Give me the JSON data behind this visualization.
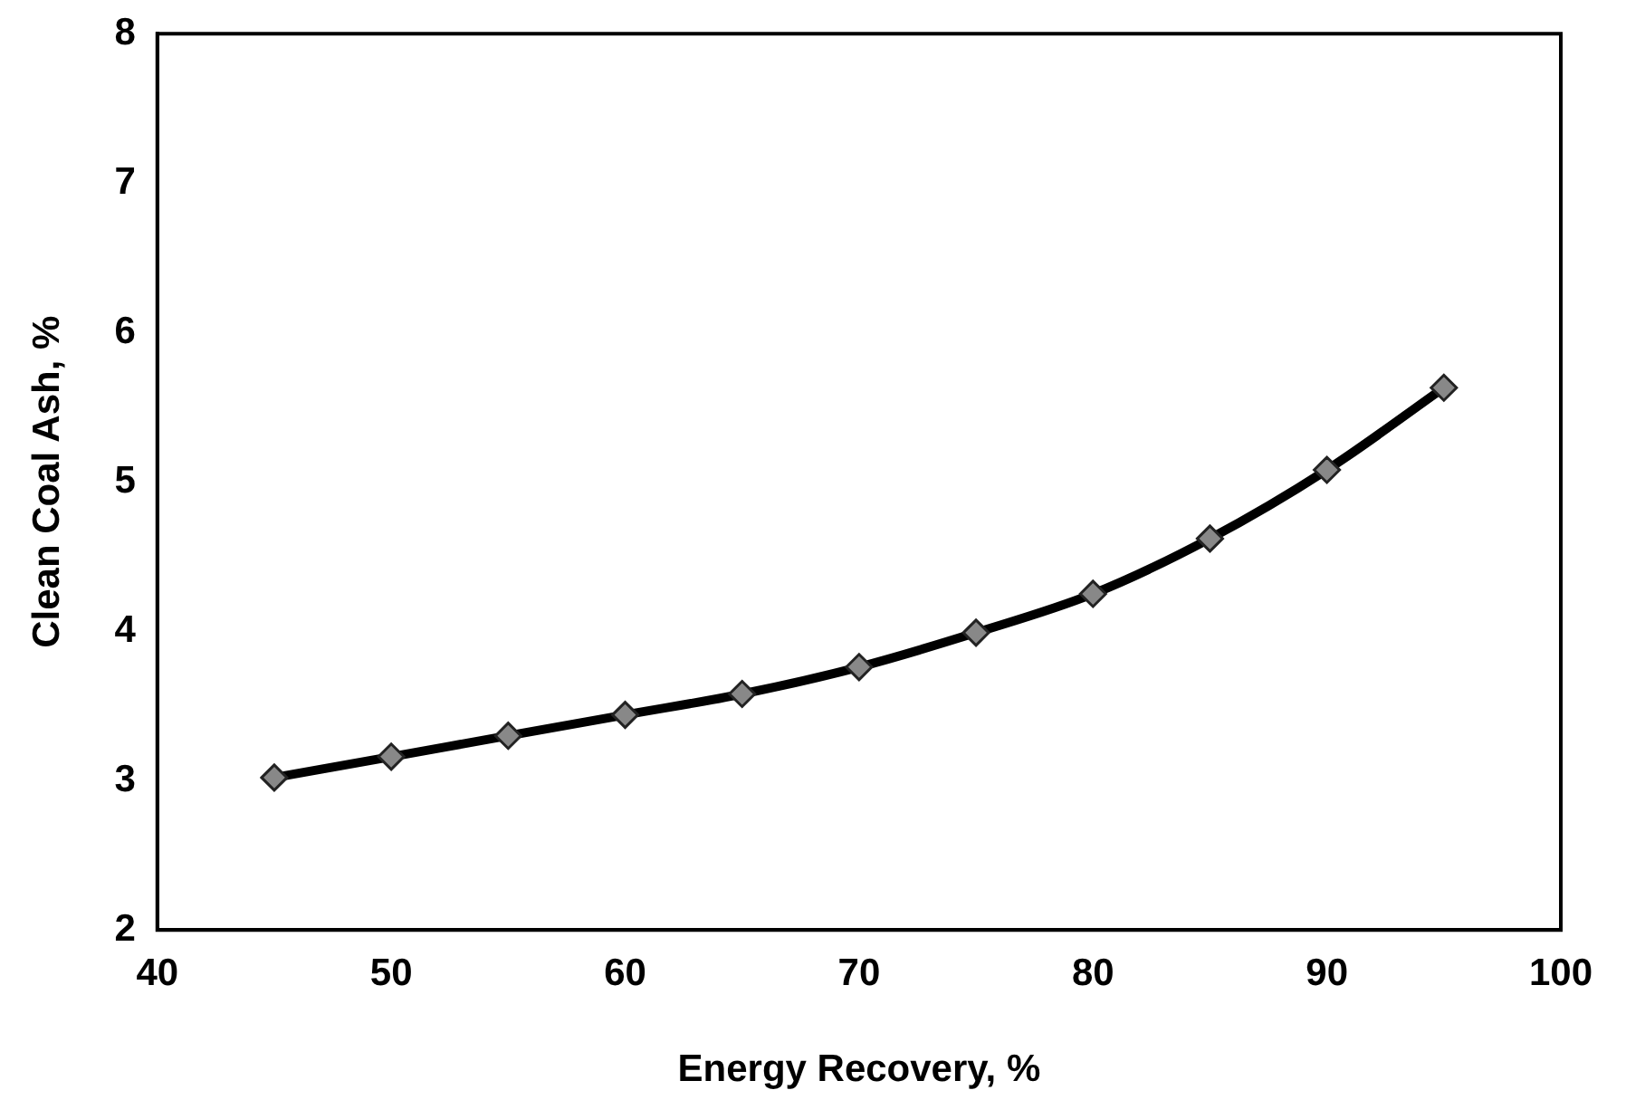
{
  "chart_data": {
    "type": "line",
    "xlabel": "Energy Recovery, %",
    "ylabel": "Clean Coal Ash, %",
    "x": [
      45,
      50,
      55,
      60,
      65,
      70,
      75,
      80,
      85,
      90,
      95
    ],
    "series": [
      {
        "color": "#000000",
        "values": [
          3.02,
          3.16,
          3.3,
          3.44,
          3.58,
          3.76,
          3.99,
          4.25,
          4.62,
          5.08,
          5.63
        ]
      }
    ],
    "xlim": [
      40,
      100
    ],
    "xticks": [
      40,
      50,
      60,
      70,
      80,
      90,
      100
    ],
    "ylim": [
      2,
      8
    ],
    "yticks": [
      2,
      3,
      4,
      5,
      6,
      7,
      8
    ],
    "grid": false,
    "legend": false,
    "marker": "diamond",
    "line_style": "solid"
  }
}
